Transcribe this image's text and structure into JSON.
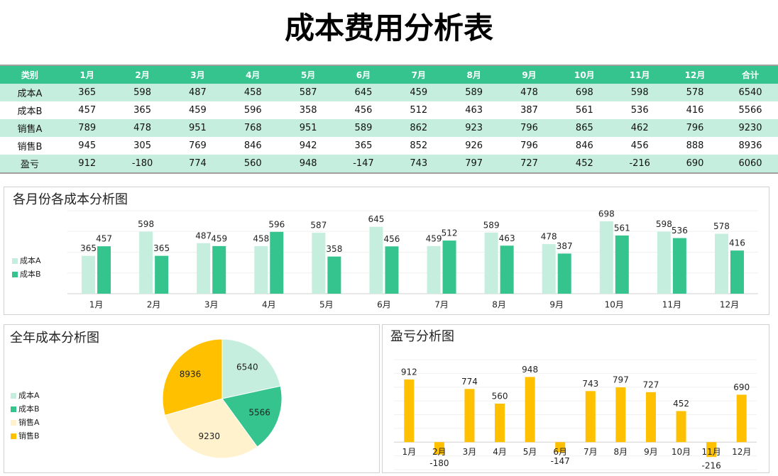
{
  "header": {
    "title": "成本费用分析表"
  },
  "table": {
    "columns": [
      "类别",
      "1月",
      "2月",
      "3月",
      "4月",
      "5月",
      "6月",
      "7月",
      "8月",
      "9月",
      "10月",
      "11月",
      "12月",
      "合计"
    ],
    "rows": [
      [
        "成本A",
        365,
        598,
        487,
        458,
        587,
        645,
        459,
        589,
        478,
        698,
        598,
        578,
        6540
      ],
      [
        "成本B",
        457,
        365,
        459,
        596,
        358,
        456,
        512,
        463,
        387,
        561,
        536,
        416,
        5566
      ],
      [
        "销售A",
        789,
        478,
        951,
        768,
        951,
        589,
        862,
        923,
        796,
        865,
        462,
        796,
        9230
      ],
      [
        "销售B",
        945,
        305,
        769,
        846,
        942,
        365,
        852,
        926,
        796,
        846,
        456,
        888,
        8936
      ],
      [
        "盈亏",
        912,
        -180,
        774,
        560,
        948,
        -147,
        743,
        797,
        727,
        452,
        -216,
        690,
        6060
      ]
    ]
  },
  "chart_data": [
    {
      "type": "bar",
      "title": "各月份各成本分析图",
      "categories": [
        "1月",
        "2月",
        "3月",
        "4月",
        "5月",
        "6月",
        "7月",
        "8月",
        "9月",
        "10月",
        "11月",
        "12月"
      ],
      "series": [
        {
          "name": "成本A",
          "color": "#c6eedf",
          "values": [
            365,
            598,
            487,
            458,
            587,
            645,
            459,
            589,
            478,
            698,
            598,
            578
          ]
        },
        {
          "name": "成本B",
          "color": "#35c48e",
          "values": [
            457,
            365,
            459,
            596,
            358,
            456,
            512,
            463,
            387,
            561,
            536,
            416
          ]
        }
      ],
      "ylim": [
        0,
        800
      ],
      "yticks": [
        0,
        200,
        400,
        600,
        800
      ],
      "ytick_labels": false,
      "grid": true,
      "legend": "left"
    },
    {
      "type": "pie",
      "title": "全年成本分析图",
      "categories": [
        "成本A",
        "成本B",
        "销售A",
        "销售B"
      ],
      "values": [
        6540,
        5566,
        9230,
        8936
      ],
      "colors": [
        "#c6eedf",
        "#35c48e",
        "#fff2cc",
        "#ffc000"
      ],
      "legend": "left"
    },
    {
      "type": "bar",
      "title": "盈亏分析图",
      "categories": [
        "1月",
        "2月",
        "3月",
        "4月",
        "5月",
        "6月",
        "7月",
        "8月",
        "9月",
        "10月",
        "11月",
        "12月"
      ],
      "series": [
        {
          "color": "#ffc000",
          "values": [
            912,
            -180,
            774,
            560,
            948,
            -147,
            743,
            797,
            727,
            452,
            -216,
            690
          ]
        }
      ],
      "ylim": [
        -400,
        1200
      ],
      "yticks": [
        -400,
        -200,
        0,
        200,
        400,
        600,
        800,
        1000,
        1200
      ],
      "ytick_labels": false,
      "grid": true
    }
  ]
}
